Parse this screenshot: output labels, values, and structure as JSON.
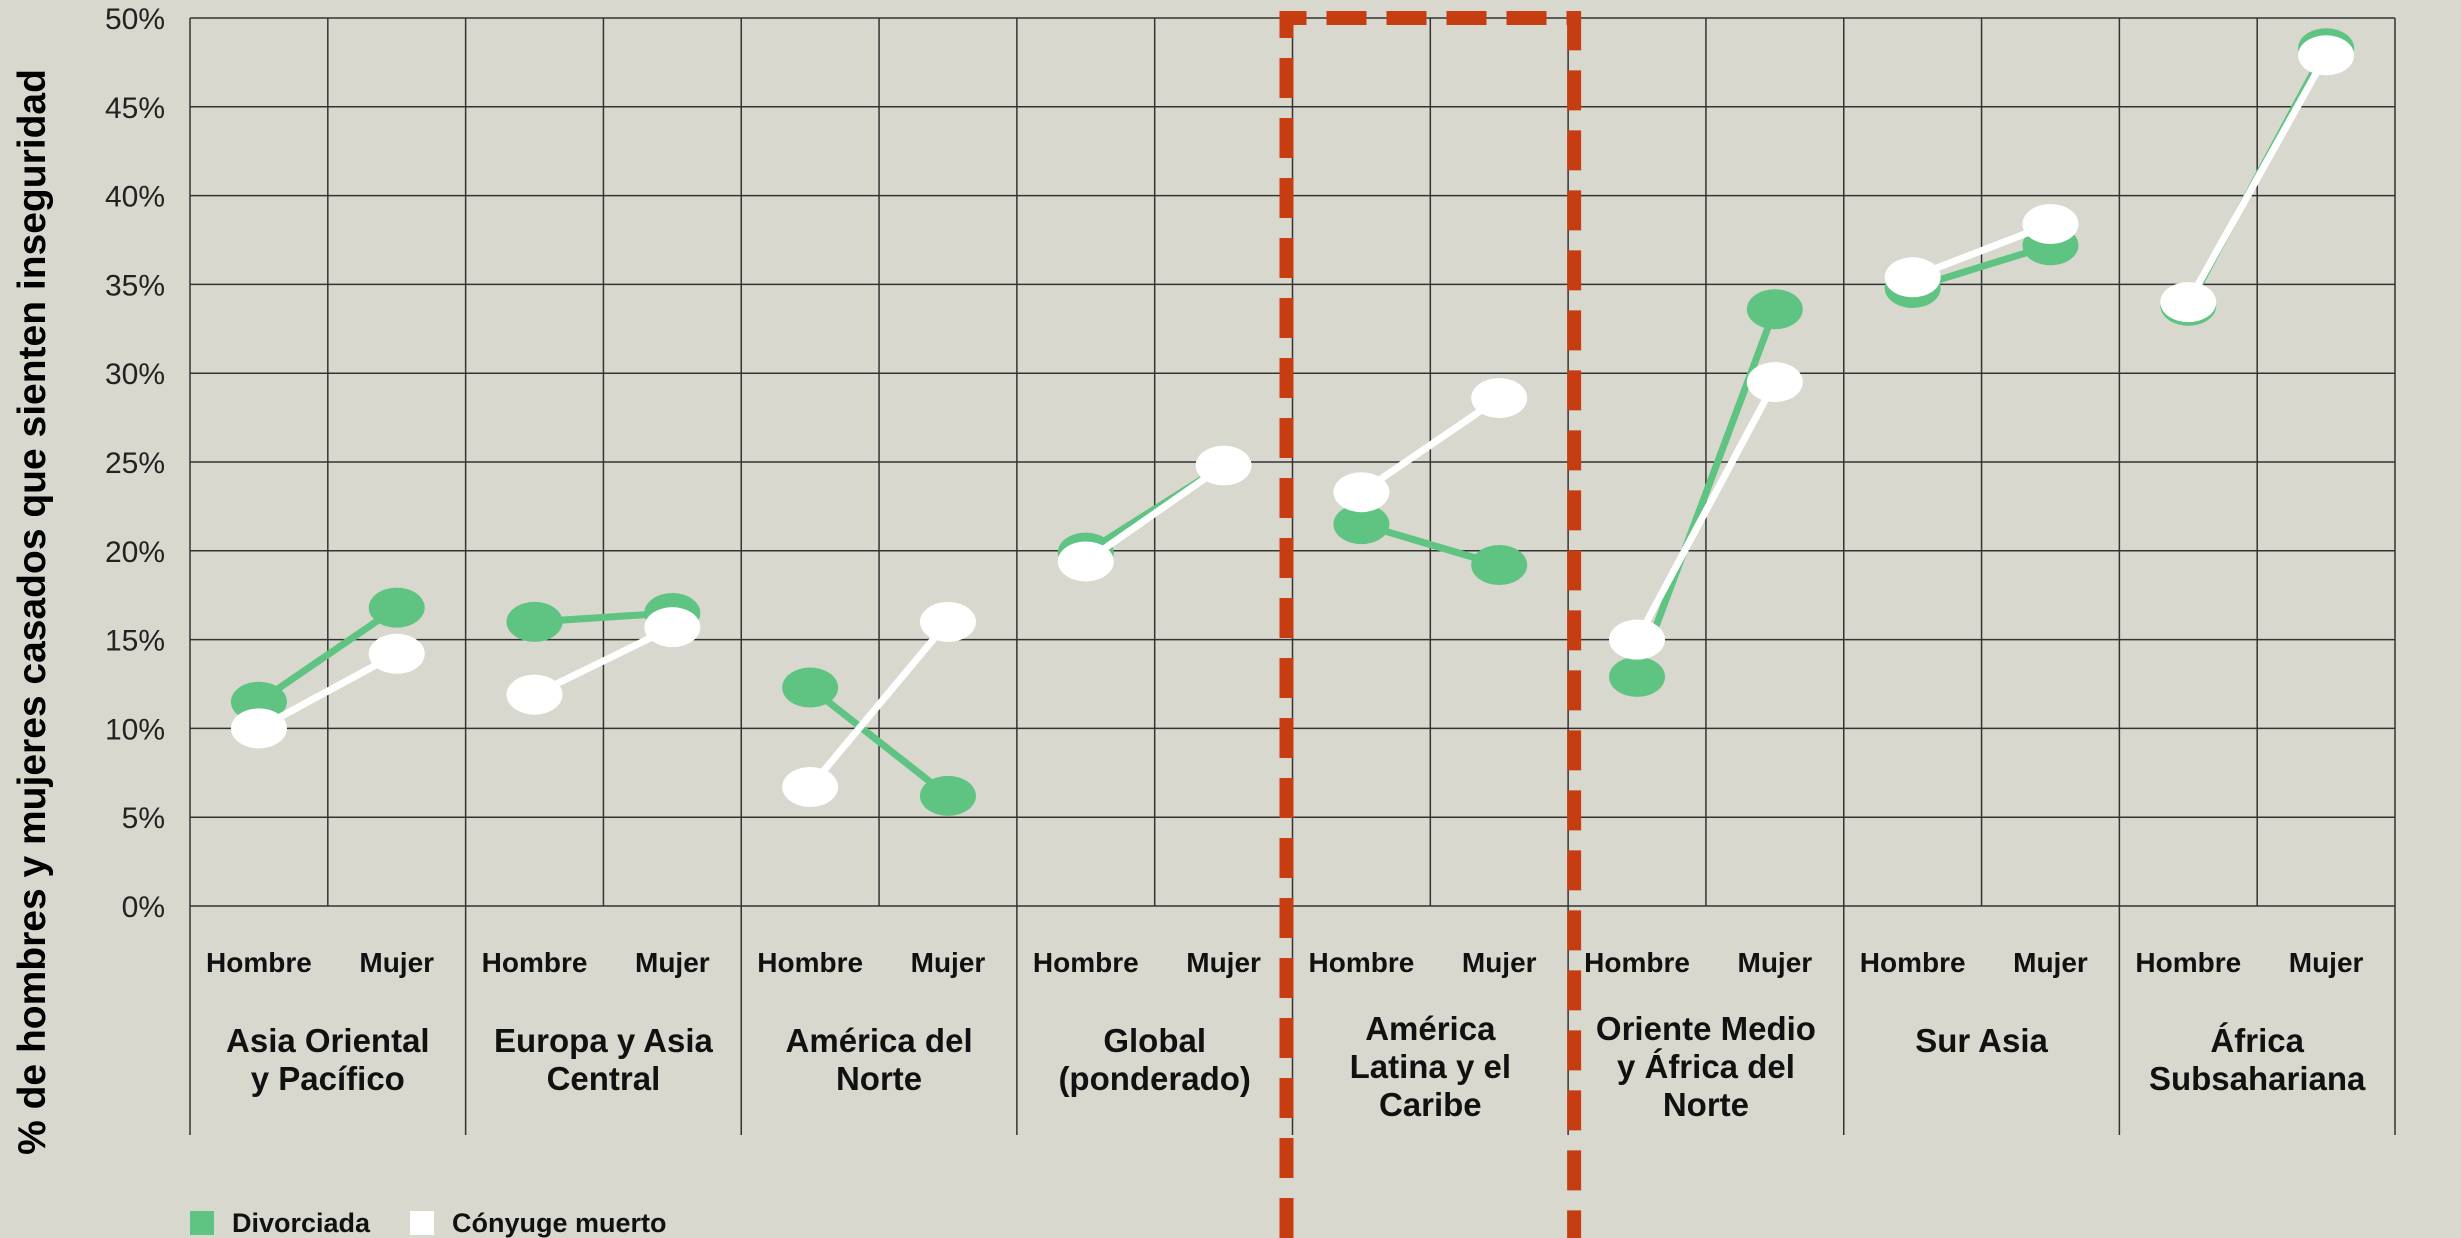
{
  "chart_data": {
    "type": "line",
    "ylabel": "% de hombres y mujeres casados que sienten inseguridad",
    "ylim": [
      0,
      50
    ],
    "y_ticks": [
      "0%",
      "5%",
      "10%",
      "15%",
      "20%",
      "25%",
      "30%",
      "35%",
      "40%",
      "45%",
      "50%"
    ],
    "genders": [
      "Hombre",
      "Mujer"
    ],
    "groups": [
      {
        "label": [
          "Asia Oriental",
          "y Pacífico"
        ],
        "highlight": false,
        "divorciada": [
          11.5,
          16.8
        ],
        "conyuge": [
          10.0,
          14.2
        ]
      },
      {
        "label": [
          "Europa y Asia",
          "Central"
        ],
        "highlight": false,
        "divorciada": [
          16.0,
          16.5
        ],
        "conyuge": [
          11.9,
          15.7
        ]
      },
      {
        "label": [
          "América del",
          "Norte"
        ],
        "highlight": false,
        "divorciada": [
          12.3,
          6.2
        ],
        "conyuge": [
          6.7,
          16.0
        ]
      },
      {
        "label": [
          "Global",
          "(ponderado)"
        ],
        "highlight": false,
        "divorciada": [
          19.9,
          24.8
        ],
        "conyuge": [
          19.4,
          24.8
        ]
      },
      {
        "label": [
          "América",
          "Latina y el",
          "Caribe"
        ],
        "highlight": true,
        "divorciada": [
          21.5,
          19.2
        ],
        "conyuge": [
          23.3,
          28.6
        ]
      },
      {
        "label": [
          "Oriente Medio",
          "y África del",
          "Norte"
        ],
        "highlight": false,
        "divorciada": [
          12.9,
          33.6
        ],
        "conyuge": [
          15.0,
          29.5
        ]
      },
      {
        "label": [
          "Sur Asia"
        ],
        "highlight": false,
        "divorciada": [
          34.8,
          37.2
        ],
        "conyuge": [
          35.4,
          38.4
        ]
      },
      {
        "label": [
          "África",
          "Subsahariana"
        ],
        "highlight": false,
        "divorciada": [
          33.8,
          48.3
        ],
        "conyuge": [
          34.0,
          47.9
        ]
      }
    ],
    "series": [
      {
        "name": "Divorciada",
        "key": "divorciada",
        "color": "#5fc382"
      },
      {
        "name": "Cónyuge muerto",
        "key": "conyuge",
        "color": "#ffffff"
      }
    ],
    "grid": true,
    "legend_position": "bottom-left",
    "highlight_color": "#c63d12"
  }
}
